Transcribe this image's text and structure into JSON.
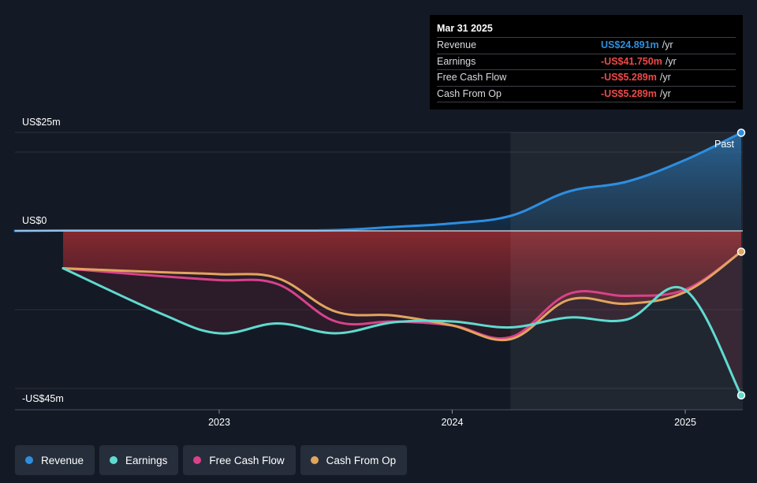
{
  "tooltip": {
    "date": "Mar 31 2025",
    "rows": [
      {
        "label": "Revenue",
        "value": "US$24.891m",
        "unit": "/yr",
        "color": "#2e8fe0"
      },
      {
        "label": "Earnings",
        "value": "-US$41.750m",
        "unit": "/yr",
        "color": "#f04848"
      },
      {
        "label": "Free Cash Flow",
        "value": "-US$5.289m",
        "unit": "/yr",
        "color": "#f04848"
      },
      {
        "label": "Cash From Op",
        "value": "-US$5.289m",
        "unit": "/yr",
        "color": "#f04848"
      }
    ]
  },
  "legend": [
    {
      "label": "Revenue",
      "color": "#2d8ee0"
    },
    {
      "label": "Earnings",
      "color": "#5fdbd0"
    },
    {
      "label": "Free Cash Flow",
      "color": "#d9428a"
    },
    {
      "label": "Cash From Op",
      "color": "#e0a55f"
    }
  ],
  "chart_data": {
    "type": "line",
    "y_tick_labels": [
      "US$25m",
      "US$0",
      "-US$45m"
    ],
    "y_ticks": [
      25,
      0,
      -45
    ],
    "ylim": [
      -45,
      25
    ],
    "x_tick_labels": [
      "2023",
      "2024",
      "2025"
    ],
    "x_ticks": [
      2023.0,
      2024.0,
      2025.0
    ],
    "xlim": [
      2022.2,
      2025.25
    ],
    "past_start": 2024.25,
    "past_label": "Past",
    "grid": "horizontal",
    "legend_position": "bottom",
    "series": [
      {
        "name": "Revenue",
        "color": "#2d8ee0",
        "x": [
          2022.33,
          2022.75,
          2023.0,
          2023.25,
          2023.5,
          2023.75,
          2024.0,
          2024.25,
          2024.5,
          2024.75,
          2025.0,
          2025.25
        ],
        "values": [
          0.1,
          0.1,
          0.1,
          0.1,
          0.2,
          1.0,
          1.9,
          3.8,
          10.0,
          12.5,
          18.0,
          24.9
        ]
      },
      {
        "name": "Earnings",
        "color": "#5fdbd0",
        "x": [
          2022.33,
          2022.75,
          2023.0,
          2023.25,
          2023.5,
          2023.75,
          2024.0,
          2024.25,
          2024.5,
          2024.75,
          2025.0,
          2025.25
        ],
        "values": [
          -9.5,
          -21.0,
          -26.0,
          -23.5,
          -26.0,
          -23.2,
          -23.0,
          -24.5,
          -22.0,
          -22.5,
          -15.0,
          -41.75
        ]
      },
      {
        "name": "Free Cash Flow",
        "color": "#d9428a",
        "x": [
          2022.33,
          2022.75,
          2023.0,
          2023.25,
          2023.5,
          2023.75,
          2024.0,
          2024.25,
          2024.5,
          2024.75,
          2025.0,
          2025.25
        ],
        "values": [
          -9.5,
          -11.5,
          -12.5,
          -13.5,
          -23.0,
          -23.0,
          -24.0,
          -27.0,
          -16.0,
          -16.5,
          -14.9,
          -5.289
        ]
      },
      {
        "name": "Cash From Op",
        "color": "#e0a55f",
        "x": [
          2022.33,
          2022.75,
          2023.0,
          2023.25,
          2023.5,
          2023.75,
          2024.0,
          2024.25,
          2024.5,
          2024.75,
          2025.0,
          2025.25
        ],
        "values": [
          -9.5,
          -10.5,
          -11.0,
          -12.0,
          -20.5,
          -21.5,
          -24.0,
          -27.5,
          -17.5,
          -18.5,
          -15.5,
          -5.289
        ]
      }
    ]
  }
}
